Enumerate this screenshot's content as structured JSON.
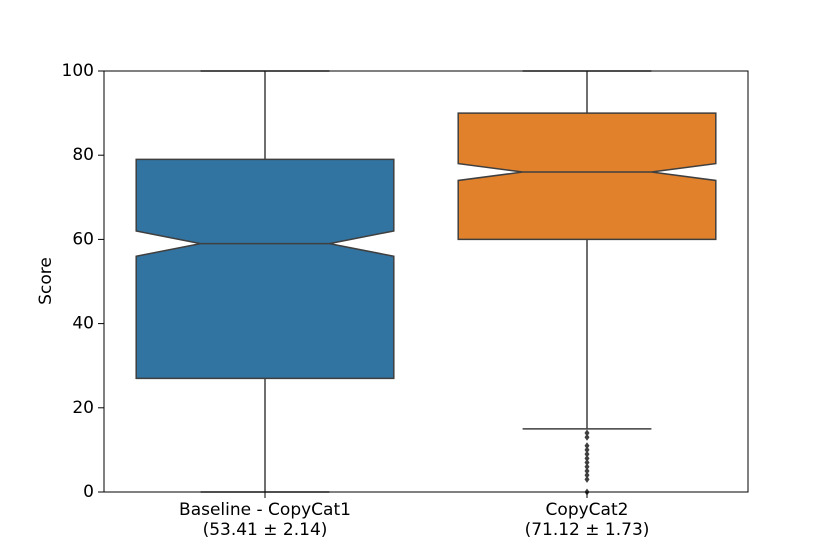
{
  "chart_data": {
    "type": "box",
    "y_label": "Score",
    "categories": [
      [
        "Baseline - CopyCat1",
        "(53.41 ± 2.14)"
      ],
      [
        "CopyCat2",
        "(71.12 ± 1.73)"
      ]
    ],
    "boxes": [
      {
        "color": "#3274a1",
        "whislo": 0,
        "q1": 27,
        "notch_lo": 56,
        "med": 59,
        "notch_hi": 62,
        "q3": 79,
        "whishi": 100,
        "outliers": []
      },
      {
        "color": "#e1812c",
        "whislo": 15,
        "q1": 60,
        "notch_lo": 74,
        "med": 76,
        "notch_hi": 78,
        "q3": 90,
        "whishi": 100,
        "outliers": [
          14,
          13,
          11,
          10,
          9,
          8,
          7,
          6,
          5,
          4,
          3,
          0
        ]
      }
    ],
    "ylim": [
      0,
      100
    ],
    "yticks": [
      0,
      20,
      40,
      60,
      80,
      100
    ],
    "edge_color": "#3f3f3f"
  }
}
